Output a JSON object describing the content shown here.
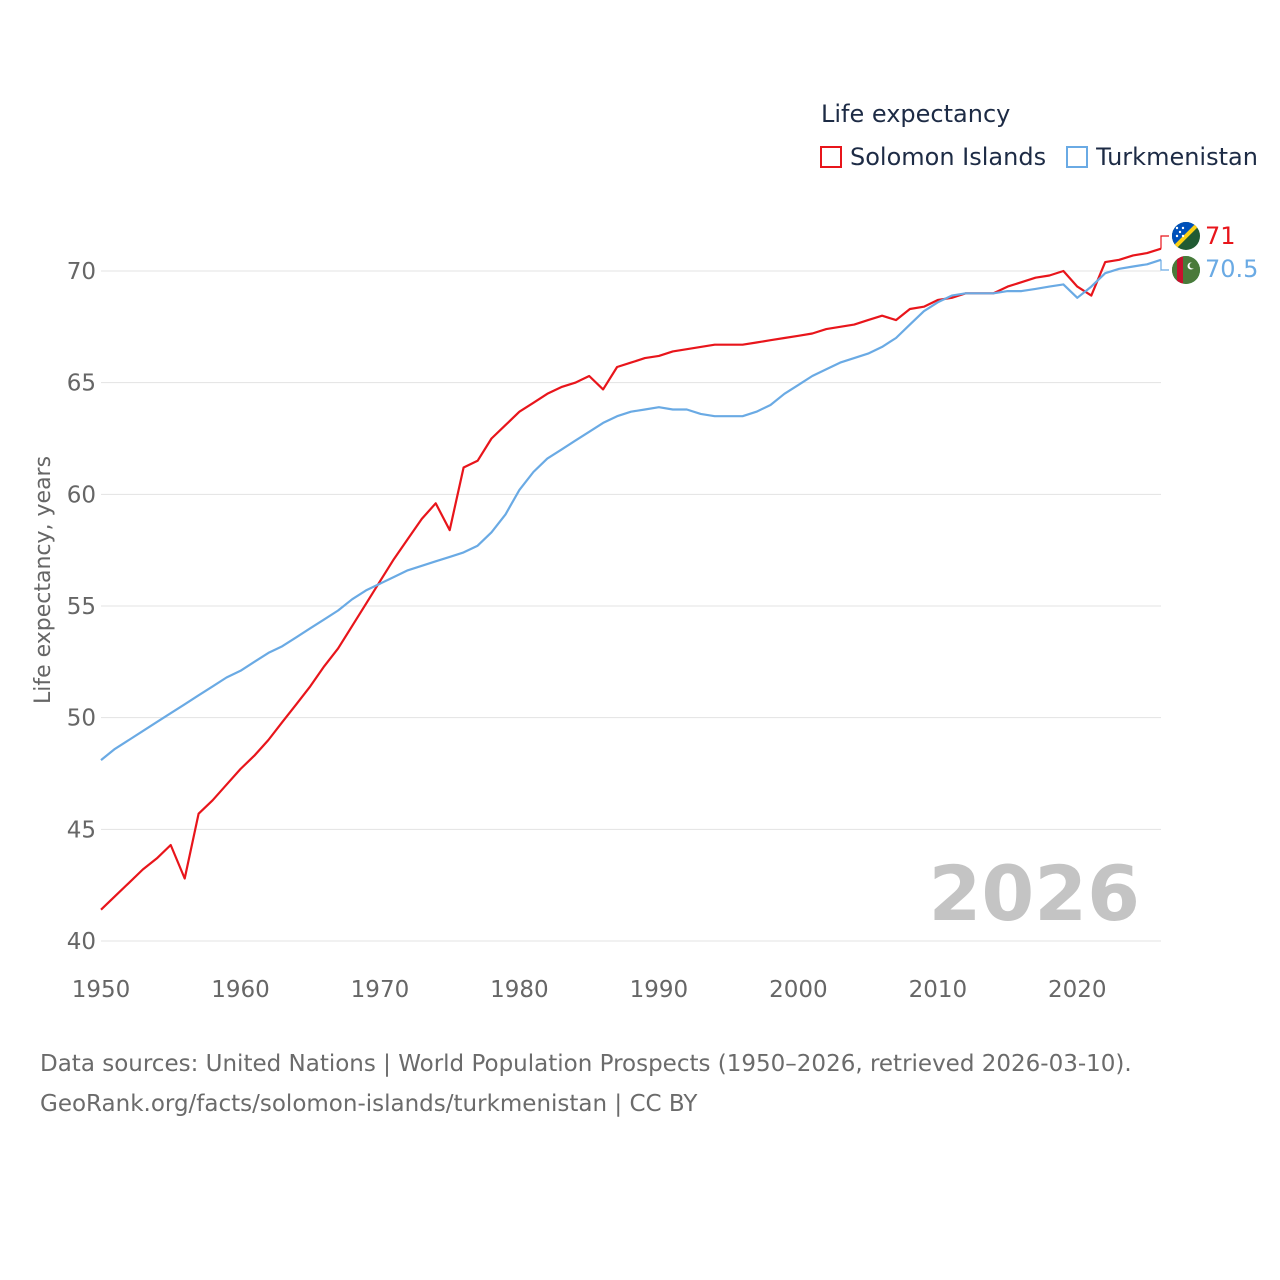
{
  "legend": {
    "title": "Life expectancy",
    "items": [
      {
        "label": "Solomon Islands",
        "color": "#e8151b"
      },
      {
        "label": "Turkmenistan",
        "color": "#6aaae4"
      }
    ]
  },
  "year_label": "2026",
  "end_labels": {
    "solomon": "71",
    "turkmenistan": "70.5"
  },
  "source": {
    "line1": "Data sources: United Nations | World Population Prospects (1950–2026, retrieved 2026-03-10).",
    "line2": "GeoRank.org/facts/solomon-islands/turkmenistan | CC BY"
  },
  "chart_data": {
    "type": "line",
    "title": "Life expectancy",
    "xlabel": "",
    "ylabel": "Life expectancy, years",
    "xlim": [
      1950,
      2026
    ],
    "ylim": [
      40,
      72
    ],
    "xticks": [
      1950,
      1960,
      1970,
      1980,
      1990,
      2000,
      2010,
      2020
    ],
    "yticks": [
      40,
      45,
      50,
      55,
      60,
      65,
      70
    ],
    "grid": true,
    "x": [
      1950,
      1951,
      1952,
      1953,
      1954,
      1955,
      1956,
      1957,
      1958,
      1959,
      1960,
      1961,
      1962,
      1963,
      1964,
      1965,
      1966,
      1967,
      1968,
      1969,
      1970,
      1971,
      1972,
      1973,
      1974,
      1975,
      1976,
      1977,
      1978,
      1979,
      1980,
      1981,
      1982,
      1983,
      1984,
      1985,
      1986,
      1987,
      1988,
      1989,
      1990,
      1991,
      1992,
      1993,
      1994,
      1995,
      1996,
      1997,
      1998,
      1999,
      2000,
      2001,
      2002,
      2003,
      2004,
      2005,
      2006,
      2007,
      2008,
      2009,
      2010,
      2011,
      2012,
      2013,
      2014,
      2015,
      2016,
      2017,
      2018,
      2019,
      2020,
      2021,
      2022,
      2023,
      2024,
      2025,
      2026
    ],
    "series": [
      {
        "name": "Solomon Islands",
        "color": "#e8151b",
        "values": [
          41.4,
          42.0,
          42.6,
          43.2,
          43.7,
          44.3,
          42.8,
          45.7,
          46.3,
          47.0,
          47.7,
          48.3,
          49.0,
          49.8,
          50.6,
          51.4,
          52.3,
          53.1,
          54.1,
          55.1,
          56.1,
          57.1,
          58.0,
          58.9,
          59.6,
          58.4,
          61.2,
          61.5,
          62.5,
          63.1,
          63.7,
          64.1,
          64.5,
          64.8,
          65.0,
          65.3,
          64.7,
          65.7,
          65.9,
          66.1,
          66.2,
          66.4,
          66.5,
          66.6,
          66.7,
          66.7,
          66.7,
          66.8,
          66.9,
          67.0,
          67.1,
          67.2,
          67.4,
          67.5,
          67.6,
          67.8,
          68.0,
          67.8,
          68.3,
          68.4,
          68.7,
          68.8,
          69.0,
          69.0,
          69.0,
          69.3,
          69.5,
          69.7,
          69.8,
          70.0,
          69.3,
          68.9,
          70.4,
          70.5,
          70.7,
          70.8,
          71.0
        ]
      },
      {
        "name": "Turkmenistan",
        "color": "#6aaae4",
        "values": [
          48.1,
          48.6,
          49.0,
          49.4,
          49.8,
          50.2,
          50.6,
          51.0,
          51.4,
          51.8,
          52.1,
          52.5,
          52.9,
          53.2,
          53.6,
          54.0,
          54.4,
          54.8,
          55.3,
          55.7,
          56.0,
          56.3,
          56.6,
          56.8,
          57.0,
          57.2,
          57.4,
          57.7,
          58.3,
          59.1,
          60.2,
          61.0,
          61.6,
          62.0,
          62.4,
          62.8,
          63.2,
          63.5,
          63.7,
          63.8,
          63.9,
          63.8,
          63.8,
          63.6,
          63.5,
          63.5,
          63.5,
          63.7,
          64.0,
          64.5,
          64.9,
          65.3,
          65.6,
          65.9,
          66.1,
          66.3,
          66.6,
          67.0,
          67.6,
          68.2,
          68.6,
          68.9,
          69.0,
          69.0,
          69.0,
          69.1,
          69.1,
          69.2,
          69.3,
          69.4,
          68.8,
          69.3,
          69.9,
          70.1,
          70.2,
          70.3,
          70.5
        ]
      }
    ]
  }
}
